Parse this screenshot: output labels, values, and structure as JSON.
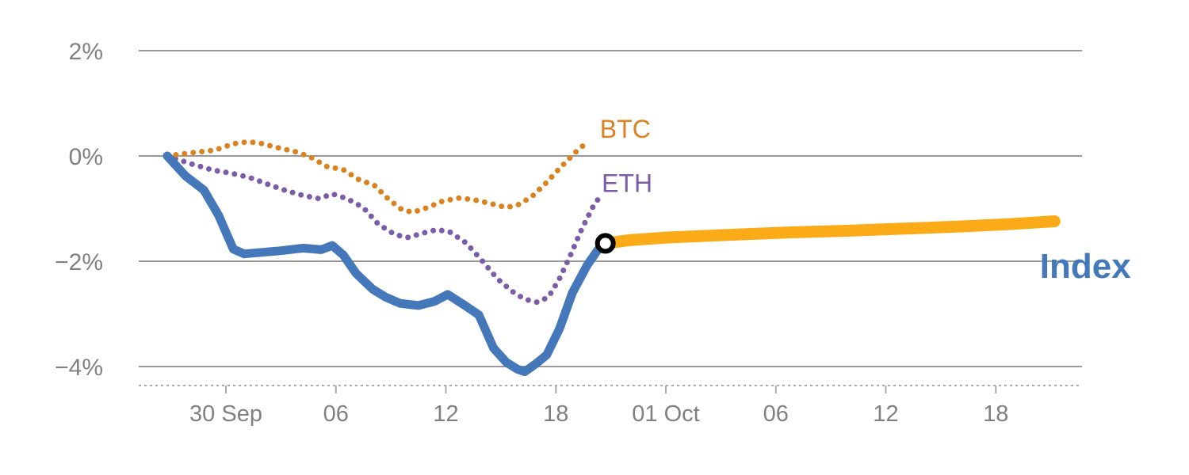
{
  "colors": {
    "background": "#ffffff",
    "grid": "#999999",
    "axis_dash": "#aaaaaa",
    "tick_text": "#808080",
    "index": "#4478bb",
    "btc": "#d9821f",
    "eth": "#7a5ca8",
    "forecast": "#fbab18",
    "marker_stroke": "#000000",
    "marker_fill": "#ffffff"
  },
  "chart_data": {
    "type": "line",
    "title": "",
    "xlabel": "",
    "ylabel": "",
    "x_unit": "hours from 30 Sep 00:00",
    "y_unit": "percent change",
    "xlim": [
      -4.8,
      46.7
    ],
    "ylim": [
      -4.4,
      2.6
    ],
    "grid": "horizontal",
    "axis_style": "dashed bottom axis with ticks",
    "legend_position": "inline-labels",
    "y_ticks": [
      {
        "label": "2%",
        "value": 2
      },
      {
        "label": "0%",
        "value": 0
      },
      {
        "label": "−2%",
        "value": -2
      },
      {
        "label": "−4%",
        "value": -4
      }
    ],
    "x_ticks": [
      {
        "label": "30 Sep",
        "t": 0
      },
      {
        "label": "06",
        "t": 6
      },
      {
        "label": "12",
        "t": 12
      },
      {
        "label": "18",
        "t": 18
      },
      {
        "label": "01 Oct",
        "t": 24
      },
      {
        "label": "06",
        "t": 30
      },
      {
        "label": "12",
        "t": 36
      },
      {
        "label": "18",
        "t": 42
      }
    ],
    "series": [
      {
        "name": "ETH",
        "color_key": "eth",
        "style": "dotted",
        "points": [
          [
            -3.2,
            0
          ],
          [
            -1.9,
            -0.15
          ],
          [
            -0.7,
            -0.27
          ],
          [
            0.3,
            -0.33
          ],
          [
            1.3,
            -0.41
          ],
          [
            2.3,
            -0.54
          ],
          [
            3.2,
            -0.65
          ],
          [
            4.2,
            -0.75
          ],
          [
            5.1,
            -0.81
          ],
          [
            5.8,
            -0.72
          ],
          [
            6.6,
            -0.81
          ],
          [
            7.5,
            -0.98
          ],
          [
            8.3,
            -1.29
          ],
          [
            9.2,
            -1.49
          ],
          [
            9.9,
            -1.55
          ],
          [
            10.7,
            -1.47
          ],
          [
            11.5,
            -1.4
          ],
          [
            12.2,
            -1.44
          ],
          [
            13.1,
            -1.65
          ],
          [
            14,
            -2
          ],
          [
            14.8,
            -2.33
          ],
          [
            15.6,
            -2.57
          ],
          [
            16.3,
            -2.72
          ],
          [
            17,
            -2.78
          ],
          [
            17.6,
            -2.68
          ],
          [
            18.2,
            -2.33
          ],
          [
            18.8,
            -1.88
          ],
          [
            19.4,
            -1.4
          ],
          [
            20,
            -0.98
          ],
          [
            20.4,
            -0.77
          ]
        ]
      },
      {
        "name": "BTC",
        "color_key": "btc",
        "style": "dotted",
        "points": [
          [
            -3.2,
            0
          ],
          [
            -1.9,
            0.06
          ],
          [
            -0.6,
            0.11
          ],
          [
            0.4,
            0.23
          ],
          [
            1.2,
            0.27
          ],
          [
            1.9,
            0.24
          ],
          [
            2.9,
            0.15
          ],
          [
            3.8,
            0.08
          ],
          [
            4.6,
            -0.02
          ],
          [
            5.5,
            -0.2
          ],
          [
            6.4,
            -0.26
          ],
          [
            7.2,
            -0.44
          ],
          [
            8.1,
            -0.56
          ],
          [
            8.9,
            -0.83
          ],
          [
            9.6,
            -1.02
          ],
          [
            10.2,
            -1.07
          ],
          [
            11,
            -0.98
          ],
          [
            11.8,
            -0.86
          ],
          [
            12.7,
            -0.8
          ],
          [
            13.5,
            -0.83
          ],
          [
            14.4,
            -0.9
          ],
          [
            15.3,
            -0.98
          ],
          [
            16,
            -0.92
          ],
          [
            16.7,
            -0.77
          ],
          [
            17.5,
            -0.5
          ],
          [
            18.3,
            -0.2
          ],
          [
            19.1,
            0.08
          ],
          [
            19.7,
            0.26
          ]
        ]
      },
      {
        "name": "Index",
        "color_key": "index",
        "style": "solid",
        "points": [
          [
            -3.2,
            0
          ],
          [
            -2.2,
            -0.38
          ],
          [
            -1.2,
            -0.65
          ],
          [
            -0.4,
            -1.13
          ],
          [
            0.4,
            -1.77
          ],
          [
            1,
            -1.86
          ],
          [
            2,
            -1.83
          ],
          [
            3,
            -1.8
          ],
          [
            4.2,
            -1.75
          ],
          [
            5.2,
            -1.78
          ],
          [
            5.8,
            -1.7
          ],
          [
            6.4,
            -1.88
          ],
          [
            7.1,
            -2.23
          ],
          [
            8,
            -2.53
          ],
          [
            8.7,
            -2.68
          ],
          [
            9.5,
            -2.8
          ],
          [
            10.5,
            -2.84
          ],
          [
            11.4,
            -2.76
          ],
          [
            12.1,
            -2.63
          ],
          [
            13,
            -2.83
          ],
          [
            13.8,
            -3.02
          ],
          [
            14.6,
            -3.65
          ],
          [
            15.3,
            -3.92
          ],
          [
            15.9,
            -4.05
          ],
          [
            16.3,
            -4.1
          ],
          [
            16.9,
            -3.95
          ],
          [
            17.5,
            -3.78
          ],
          [
            18.2,
            -3.28
          ],
          [
            18.9,
            -2.6
          ],
          [
            19.7,
            -2.08
          ],
          [
            20.3,
            -1.78
          ],
          [
            20.7,
            -1.66
          ]
        ]
      },
      {
        "name": "Index forecast",
        "color_key": "forecast",
        "style": "solid-thick",
        "points": [
          [
            20.7,
            -1.66
          ],
          [
            22,
            -1.6
          ],
          [
            24,
            -1.55
          ],
          [
            26,
            -1.52
          ],
          [
            28,
            -1.49
          ],
          [
            31,
            -1.45
          ],
          [
            34,
            -1.42
          ],
          [
            37,
            -1.38
          ],
          [
            40,
            -1.34
          ],
          [
            43,
            -1.29
          ],
          [
            45.2,
            -1.24
          ]
        ]
      }
    ],
    "marker": {
      "name": "forecast-start-point",
      "t": 20.7,
      "v": -1.66
    },
    "annotations": [
      {
        "text": "BTC",
        "color_key": "btc",
        "t": 20.4,
        "v": 0.51,
        "size": 32,
        "bold": false
      },
      {
        "text": "ETH",
        "color_key": "eth",
        "t": 20.5,
        "v": -0.52,
        "size": 32,
        "bold": false
      },
      {
        "text": "Index",
        "color_key": "index",
        "t": 44.4,
        "v": -2.1,
        "size": 44,
        "bold": true
      }
    ]
  }
}
